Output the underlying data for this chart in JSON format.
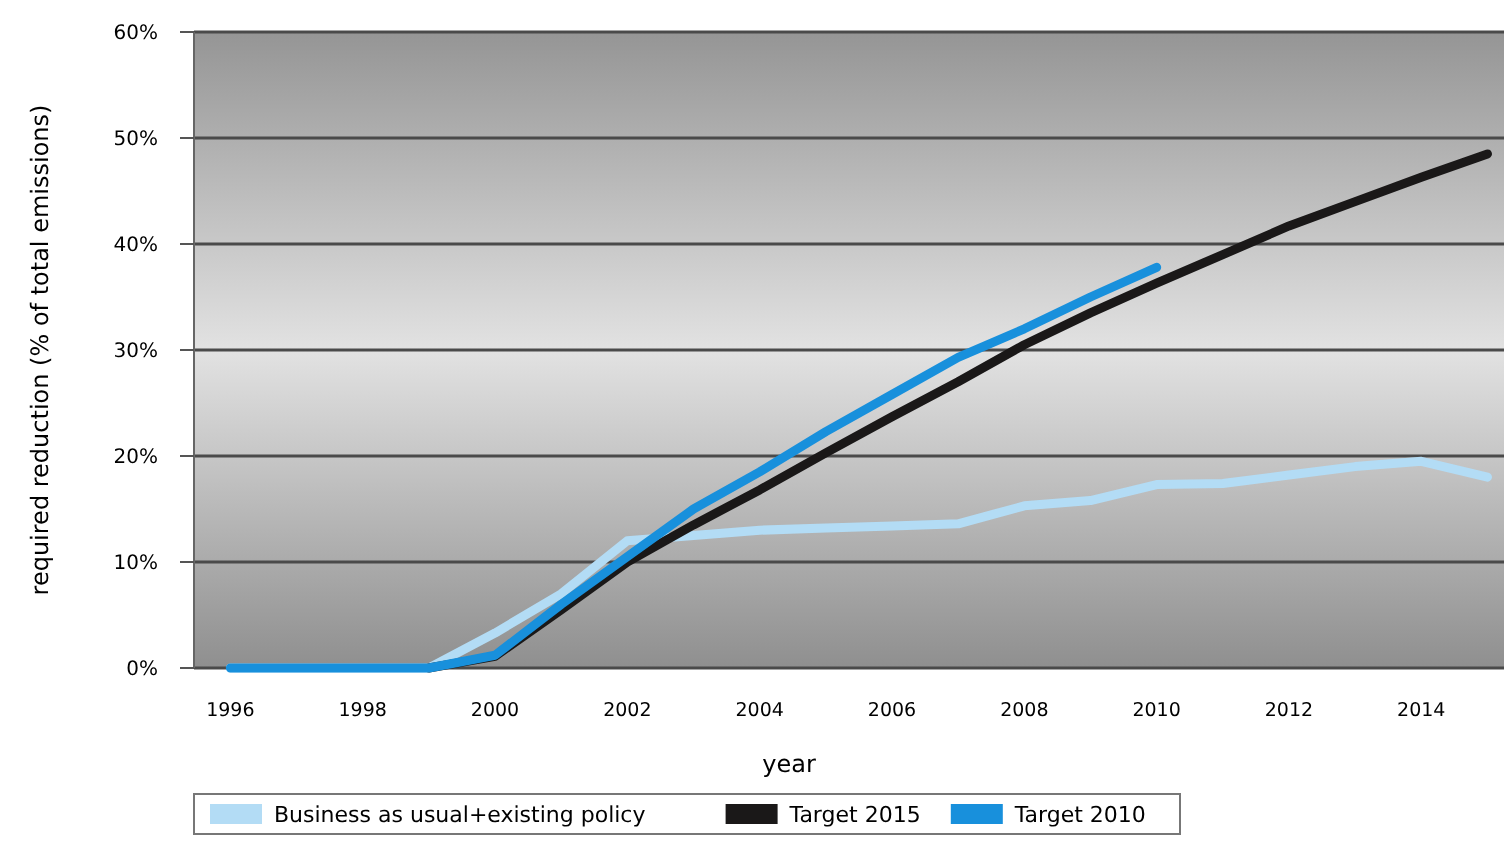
{
  "chart_data": {
    "type": "line",
    "xlabel": "year",
    "ylabel": "required reduction (% of total emissions)",
    "xlim": [
      1995.45,
      2015.25
    ],
    "xticks": [
      1996,
      1998,
      2000,
      2002,
      2004,
      2006,
      2008,
      2010,
      2012,
      2014
    ],
    "ylim": [
      0,
      60
    ],
    "yticks": [
      {
        "value": 0,
        "label": "0%"
      },
      {
        "value": 10,
        "label": "10%"
      },
      {
        "value": 20,
        "label": "20%"
      },
      {
        "value": 30,
        "label": "30%"
      },
      {
        "value": 40,
        "label": "40%"
      },
      {
        "value": 50,
        "label": "50%"
      },
      {
        "value": 60,
        "label": "60%"
      }
    ],
    "grid": "y",
    "legend": "bottom",
    "marker": "none",
    "line_style": "solid",
    "series": [
      {
        "name": "Business as usual+existing policy",
        "color": "#b3dcf5",
        "x": [
          1996,
          1997,
          1998,
          1999,
          2000,
          2001,
          2002,
          2003,
          2004,
          2005,
          2006,
          2007,
          2008,
          2009,
          2010,
          2011,
          2012,
          2013,
          2014,
          2015
        ],
        "values": [
          0,
          0,
          0,
          0,
          3.3,
          7,
          12,
          12.5,
          13,
          13.2,
          13.4,
          13.6,
          15.3,
          15.8,
          17.3,
          17.4,
          18.2,
          19,
          19.5,
          18
        ]
      },
      {
        "name": "Target 2015",
        "color": "#1a1818",
        "x": [
          1999,
          2000,
          2001,
          2002,
          2003,
          2004,
          2005,
          2006,
          2007,
          2008,
          2009,
          2010,
          2011,
          2012,
          2013,
          2014,
          2015
        ],
        "values": [
          0,
          1.1,
          5.5,
          10,
          13.5,
          16.8,
          20.3,
          23.7,
          27,
          30.5,
          33.5,
          36.3,
          39,
          41.7,
          44,
          46.3,
          48.5
        ]
      },
      {
        "name": "Target 2010",
        "color": "#1890dc",
        "x": [
          1996,
          1997,
          1998,
          1999,
          2000,
          2001,
          2002,
          2003,
          2004,
          2005,
          2006,
          2007,
          2008,
          2009,
          2010
        ],
        "values": [
          0,
          0,
          0,
          0,
          1.2,
          6,
          10.5,
          15,
          18.5,
          22.3,
          25.8,
          29.3,
          32,
          35,
          37.8
        ]
      }
    ]
  }
}
